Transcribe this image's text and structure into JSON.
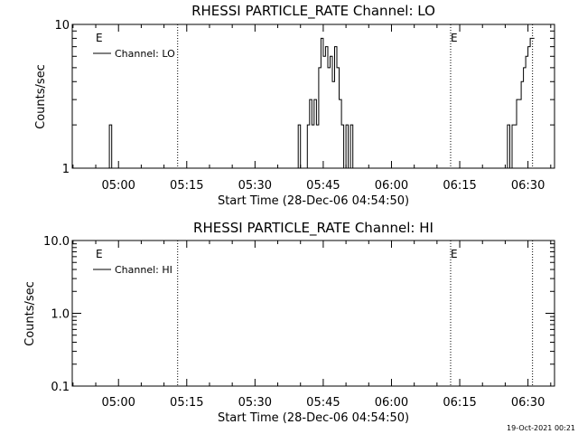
{
  "chart_data": [
    {
      "type": "line",
      "title": "RHESSI PARTICLE_RATE Channel: LO",
      "xlabel": "Start Time (28-Dec-06 04:54:50)",
      "ylabel": "Counts/sec",
      "y_scale": "log",
      "ylim": [
        1,
        10
      ],
      "y_tick_labels": [
        "1",
        "10"
      ],
      "x_range_minutes_after_start": [
        -5.0,
        101.0
      ],
      "x_tick_labels": [
        "05:00",
        "05:15",
        "05:30",
        "05:45",
        "06:00",
        "06:15",
        "06:30"
      ],
      "x_tick_times": [
        "05:00",
        "05:15",
        "05:30",
        "05:45",
        "06:00",
        "06:15",
        "06:30"
      ],
      "vertical_dotted_lines_at": [
        "05:13",
        "06:13",
        "06:31"
      ],
      "event_markers": [
        {
          "label": "E",
          "at": "04:55"
        },
        {
          "label": "E",
          "at": "06:13"
        }
      ],
      "legend": {
        "entries": [
          "Channel: LO"
        ],
        "placement": "top-left"
      },
      "series": [
        {
          "name": "Channel: LO",
          "color": "#000000",
          "x": [
            "04:57:30",
            "04:58:00",
            "04:58:30",
            "05:00:00",
            "05:39:00",
            "05:39:30",
            "05:40:00",
            "05:40:30",
            "05:41:00",
            "05:41:30",
            "05:42:00",
            "05:42:30",
            "05:43:00",
            "05:43:30",
            "05:44:00",
            "05:44:30",
            "05:45:00",
            "05:45:30",
            "05:46:00",
            "05:46:30",
            "05:47:00",
            "05:47:30",
            "05:48:00",
            "05:48:30",
            "05:49:00",
            "05:49:30",
            "05:50:00",
            "05:50:30",
            "05:51:00",
            "05:51:30",
            "05:52:00",
            "05:52:30",
            "05:53:00",
            "05:55:00",
            "06:25:00",
            "06:25:30",
            "06:26:00",
            "06:26:30",
            "06:27:00",
            "06:27:30",
            "06:28:00",
            "06:28:30",
            "06:29:00",
            "06:29:30",
            "06:30:00",
            "06:30:30",
            "06:31:00"
          ],
          "y": [
            1,
            2,
            1,
            1,
            1,
            2,
            1,
            1,
            1,
            2,
            3,
            2,
            3,
            2,
            5,
            8,
            6,
            7,
            5,
            6,
            4,
            7,
            5,
            3,
            2,
            1,
            2,
            1,
            2,
            1,
            1,
            1,
            1,
            1,
            1,
            2,
            1,
            2,
            2,
            3,
            3,
            4,
            5,
            6,
            7,
            8,
            8
          ]
        }
      ]
    },
    {
      "type": "line",
      "title": "RHESSI PARTICLE_RATE Channel: HI",
      "xlabel": "Start Time (28-Dec-06 04:54:50)",
      "ylabel": "Counts/sec",
      "y_scale": "log",
      "ylim": [
        0.1,
        10.0
      ],
      "y_tick_labels": [
        "0.1",
        "1.0",
        "10.0"
      ],
      "x_range_minutes_after_start": [
        -5.0,
        101.0
      ],
      "x_tick_labels": [
        "05:00",
        "05:15",
        "05:30",
        "05:45",
        "06:00",
        "06:15",
        "06:30"
      ],
      "x_tick_times": [
        "05:00",
        "05:15",
        "05:30",
        "05:45",
        "06:00",
        "06:15",
        "06:30"
      ],
      "vertical_dotted_lines_at": [
        "05:13",
        "06:13",
        "06:31"
      ],
      "event_markers": [
        {
          "label": "E",
          "at": "04:55"
        },
        {
          "label": "E",
          "at": "06:13"
        }
      ],
      "legend": {
        "entries": [
          "Channel: HI"
        ],
        "placement": "top-left"
      },
      "series": [
        {
          "name": "Channel: HI",
          "color": "#000000",
          "x": [],
          "y": []
        }
      ]
    }
  ],
  "footer": {
    "timestamp": "19-Oct-2021 00:21"
  }
}
